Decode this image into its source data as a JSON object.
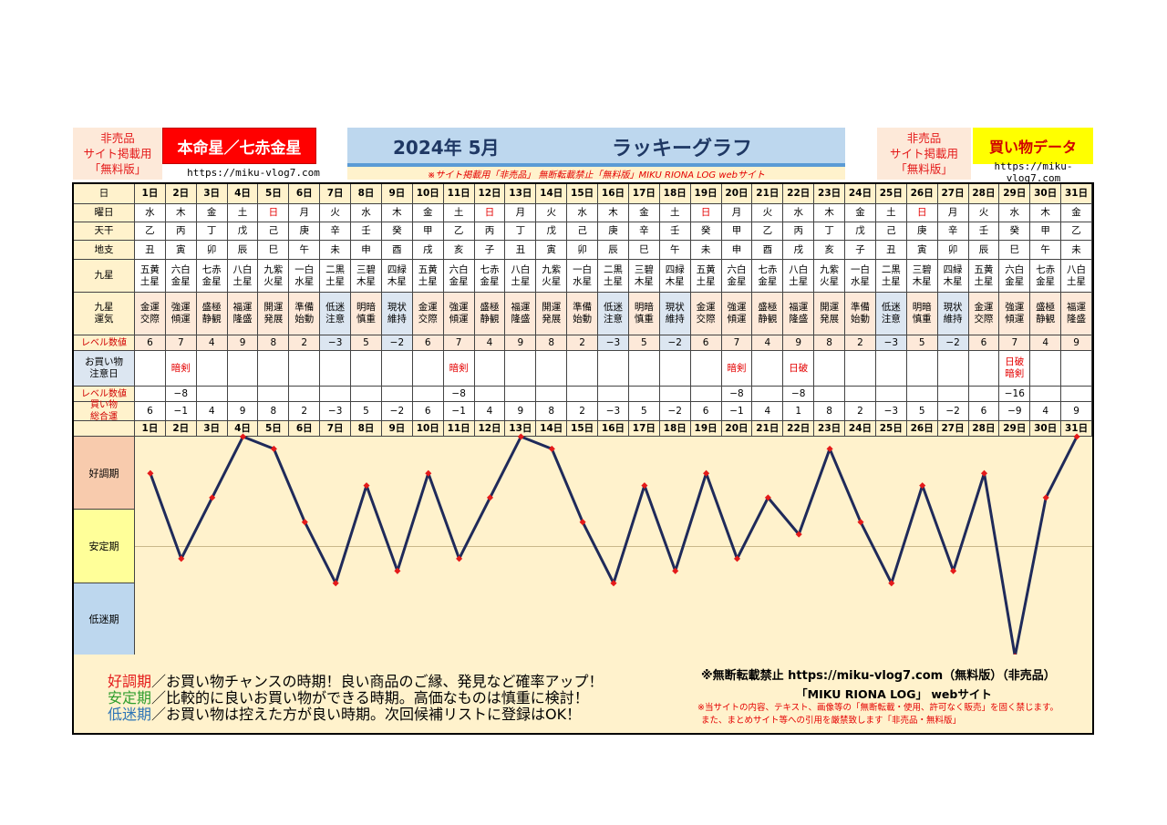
{
  "header": {
    "notice_left": [
      "非売品",
      "サイト掲載用",
      "「無料版」"
    ],
    "badge_left": "本命星／七赤金星",
    "url_left": "https://miku-vlog7.com",
    "title_date": "2024年 5月",
    "title_label": "ラッキーグラフ",
    "warning_line": "※サイト掲載用「非売品」 無断転載禁止「無料版」MIKU RIONA LOG webサイト",
    "notice_right": [
      "非売品",
      "サイト掲載用",
      "「無料版」"
    ],
    "badge_right": "買い物データ",
    "url_right": "https://miku-vlog7.com"
  },
  "row_labels": {
    "day": "日",
    "weekday": "曜日",
    "tenkan": "天干",
    "chishi": "地支",
    "kyusei": "九星",
    "unki": "九星\n運気",
    "level": "レベル数値",
    "caution": "お買い物\n注意日",
    "caution_level": "レベル数値",
    "total": "買い物\n総合運"
  },
  "days": [
    "1日",
    "2日",
    "3日",
    "4日",
    "5日",
    "6日",
    "7日",
    "8日",
    "9日",
    "10日",
    "11日",
    "12日",
    "13日",
    "14日",
    "15日",
    "16日",
    "17日",
    "18日",
    "19日",
    "20日",
    "21日",
    "22日",
    "23日",
    "24日",
    "25日",
    "26日",
    "27日",
    "28日",
    "29日",
    "30日",
    "31日"
  ],
  "weekdays": [
    "水",
    "木",
    "金",
    "土",
    "日",
    "月",
    "火",
    "水",
    "木",
    "金",
    "土",
    "日",
    "月",
    "火",
    "水",
    "木",
    "金",
    "土",
    "日",
    "月",
    "火",
    "水",
    "木",
    "金",
    "土",
    "日",
    "月",
    "火",
    "水",
    "木",
    "金"
  ],
  "tenkan": [
    "乙",
    "丙",
    "丁",
    "戊",
    "己",
    "庚",
    "辛",
    "壬",
    "癸",
    "甲",
    "乙",
    "丙",
    "丁",
    "戊",
    "己",
    "庚",
    "辛",
    "壬",
    "癸",
    "甲",
    "乙",
    "丙",
    "丁",
    "戊",
    "己",
    "庚",
    "辛",
    "壬",
    "癸",
    "甲",
    "乙"
  ],
  "chishi": [
    "丑",
    "寅",
    "卯",
    "辰",
    "巳",
    "午",
    "未",
    "申",
    "酉",
    "戌",
    "亥",
    "子",
    "丑",
    "寅",
    "卯",
    "辰",
    "巳",
    "午",
    "未",
    "申",
    "酉",
    "戌",
    "亥",
    "子",
    "丑",
    "寅",
    "卯",
    "辰",
    "巳",
    "午",
    "未"
  ],
  "kyusei": [
    "五黄\n土星",
    "六白\n金星",
    "七赤\n金星",
    "八白\n土星",
    "九紫\n火星",
    "一白\n水星",
    "二黒\n土星",
    "三碧\n木星",
    "四緑\n木星",
    "五黄\n土星",
    "六白\n金星",
    "七赤\n金星",
    "八白\n土星",
    "九紫\n火星",
    "一白\n水星",
    "二黒\n土星",
    "三碧\n木星",
    "四緑\n木星",
    "五黄\n土星",
    "六白\n金星",
    "七赤\n金星",
    "八白\n土星",
    "九紫\n火星",
    "一白\n水星",
    "二黒\n土星",
    "三碧\n木星",
    "四緑\n木星",
    "五黄\n土星",
    "六白\n金星",
    "七赤\n金星",
    "八白\n土星"
  ],
  "unki": [
    "金運\n交際",
    "強運\n傾運",
    "盛極\n静観",
    "福運\n隆盛",
    "開運\n発展",
    "準備\n始動",
    "低迷\n注意",
    "明暗\n慎重",
    "現状\n維持",
    "金運\n交際",
    "強運\n傾運",
    "盛極\n静観",
    "福運\n隆盛",
    "開運\n発展",
    "準備\n始動",
    "低迷\n注意",
    "明暗\n慎重",
    "現状\n維持",
    "金運\n交際",
    "強運\n傾運",
    "盛極\n静観",
    "福運\n隆盛",
    "開運\n発展",
    "準備\n始動",
    "低迷\n注意",
    "明暗\n慎重",
    "現状\n維持",
    "金運\n交際",
    "強運\n傾運",
    "盛極\n静観",
    "福運\n隆盛"
  ],
  "level": [
    "6",
    "7",
    "4",
    "9",
    "8",
    "2",
    "−3",
    "5",
    "−2",
    "6",
    "7",
    "4",
    "9",
    "8",
    "2",
    "−3",
    "5",
    "−2",
    "6",
    "7",
    "4",
    "9",
    "8",
    "2",
    "−3",
    "5",
    "−2",
    "6",
    "7",
    "4",
    "9"
  ],
  "caution": [
    "",
    "暗剣",
    "",
    "",
    "",
    "",
    "",
    "",
    "",
    "",
    "暗剣",
    "",
    "",
    "",
    "",
    "",
    "",
    "",
    "",
    "暗剣",
    "",
    "日破",
    "",
    "",
    "",
    "",
    "",
    "",
    "日破\n暗剣",
    "",
    ""
  ],
  "caution_level": [
    "",
    "−8",
    "",
    "",
    "",
    "",
    "",
    "",
    "",
    "",
    "−8",
    "",
    "",
    "",
    "",
    "",
    "",
    "",
    "",
    "−8",
    "",
    "−8",
    "",
    "",
    "",
    "",
    "",
    "",
    "−16",
    "",
    ""
  ],
  "total_display": [
    "6",
    "−1",
    "4",
    "9",
    "8",
    "2",
    "−3",
    "5",
    "−2",
    "6",
    "−1",
    "4",
    "9",
    "8",
    "2",
    "−3",
    "5",
    "−2",
    "6",
    "−1",
    "4",
    "1",
    "8",
    "2",
    "−3",
    "5",
    "−2",
    "6",
    "−9",
    "4",
    "9"
  ],
  "chart_data": {
    "type": "line",
    "categories": [
      "1日",
      "2日",
      "3日",
      "4日",
      "5日",
      "6日",
      "7日",
      "8日",
      "9日",
      "10日",
      "11日",
      "12日",
      "13日",
      "14日",
      "15日",
      "16日",
      "17日",
      "18日",
      "19日",
      "20日",
      "21日",
      "22日",
      "23日",
      "24日",
      "25日",
      "26日",
      "27日",
      "28日",
      "29日",
      "30日",
      "31日"
    ],
    "series": [
      {
        "values": [
          6,
          -1,
          4,
          9,
          8,
          2,
          -3,
          5,
          -2,
          6,
          -1,
          4,
          9,
          8,
          2,
          -3,
          5,
          -2,
          6,
          -1,
          4,
          1,
          8,
          2,
          -3,
          5,
          -2,
          6,
          -9,
          4,
          9
        ]
      }
    ],
    "zones": [
      "好調期",
      "安定期",
      "低迷期"
    ],
    "ylim": [
      -9,
      9
    ],
    "line_color": "#1f2a5a",
    "marker_color": "#e41a1a"
  },
  "legend": {
    "lines": [
      {
        "key": "好調期",
        "key_color": "#e41a1a",
        "text": "／お買い物チャンスの時期！良い商品のご縁、発見など確率アップ！"
      },
      {
        "key": "安定期",
        "key_color": "#2e9e2e",
        "text": "／比較的に良いお買い物ができる時期。高価なものは慎重に検討！"
      },
      {
        "key": "低迷期",
        "key_color": "#2e75b6",
        "text": "／お買い物は控えた方が良い時期。次回候補リストに登録はOK！"
      }
    ],
    "copyright_title": "※無断転載禁止 https://miku-vlog7.com（無料版）（非売品）",
    "site_line": "「MIKU RIONA LOG」 webサイト",
    "notice1": "※当サイトの内容、テキスト、画像等の「無断転載・使用、許可なく販売」を固く禁じます。",
    "notice2": "また、まとめサイト等への引用を厳禁致します「非売品・無料版」"
  },
  "colors": {
    "sunday": "#e40000",
    "zone_good": "#f8cbad",
    "zone_stable": "#ffff99",
    "zone_low": "#bdd7ee",
    "plot_bg": "#fff2cc"
  }
}
